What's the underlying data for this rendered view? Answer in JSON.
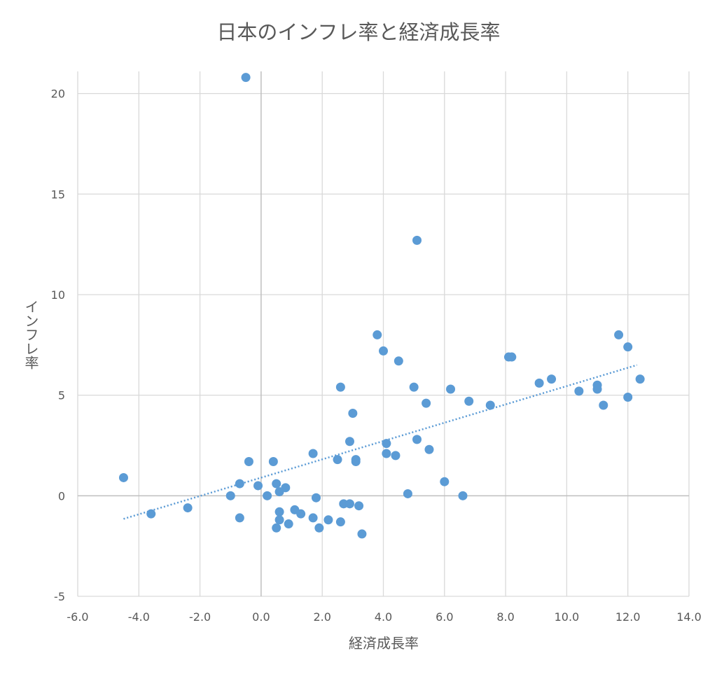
{
  "chart_data": {
    "type": "scatter",
    "title": "日本のインフレ率と経済成長率",
    "xlabel": "経済成長率",
    "ylabel": "インフレ率",
    "xlim": [
      -6.0,
      14.0
    ],
    "ylim": [
      -5,
      22
    ],
    "x_ticks": [
      -6.0,
      -4.0,
      -2.0,
      0.0,
      2.0,
      4.0,
      6.0,
      8.0,
      10.0,
      12.0,
      14.0
    ],
    "x_tick_labels": [
      "-6.0",
      "-4.0",
      "-2.0",
      "0.0",
      "2.0",
      "4.0",
      "6.0",
      "8.0",
      "10.0",
      "12.0",
      "14.0"
    ],
    "y_ticks": [
      -5,
      0,
      5,
      10,
      15,
      20
    ],
    "y_tick_labels": [
      "-5",
      "0",
      "5",
      "10",
      "15",
      "20"
    ],
    "grid": true,
    "marker_color": "#5B9BD5",
    "trendline": {
      "type": "linear",
      "style": "dotted",
      "color": "#5B9BD5",
      "x_start": -4.5,
      "x_end": 12.3,
      "y_start": -1.15,
      "y_end": 6.5
    },
    "points": [
      {
        "x": -0.5,
        "y": 20.8
      },
      {
        "x": 5.1,
        "y": 12.7
      },
      {
        "x": 3.8,
        "y": 8.0
      },
      {
        "x": 4.0,
        "y": 7.2
      },
      {
        "x": 4.5,
        "y": 6.7
      },
      {
        "x": 2.6,
        "y": 5.4
      },
      {
        "x": 5.0,
        "y": 5.4
      },
      {
        "x": 6.2,
        "y": 5.3
      },
      {
        "x": 5.4,
        "y": 4.6
      },
      {
        "x": 6.8,
        "y": 4.7
      },
      {
        "x": 7.5,
        "y": 4.5
      },
      {
        "x": 8.1,
        "y": 6.9
      },
      {
        "x": 8.2,
        "y": 6.9
      },
      {
        "x": 9.1,
        "y": 5.6
      },
      {
        "x": 9.5,
        "y": 5.8
      },
      {
        "x": 10.4,
        "y": 5.2
      },
      {
        "x": 11.0,
        "y": 5.3
      },
      {
        "x": 11.0,
        "y": 5.5
      },
      {
        "x": 11.2,
        "y": 4.5
      },
      {
        "x": 11.7,
        "y": 8.0
      },
      {
        "x": 12.0,
        "y": 7.4
      },
      {
        "x": 12.0,
        "y": 4.9
      },
      {
        "x": 12.4,
        "y": 5.8
      },
      {
        "x": 3.0,
        "y": 4.1
      },
      {
        "x": 2.9,
        "y": 2.7
      },
      {
        "x": 5.1,
        "y": 2.8
      },
      {
        "x": 5.5,
        "y": 2.3
      },
      {
        "x": 4.1,
        "y": 2.6
      },
      {
        "x": 4.1,
        "y": 2.1
      },
      {
        "x": 4.4,
        "y": 2.0
      },
      {
        "x": 1.7,
        "y": 2.1
      },
      {
        "x": 2.5,
        "y": 1.8
      },
      {
        "x": 3.1,
        "y": 1.8
      },
      {
        "x": 3.1,
        "y": 1.7
      },
      {
        "x": 0.4,
        "y": 1.7
      },
      {
        "x": -0.4,
        "y": 1.7
      },
      {
        "x": -4.5,
        "y": 0.9
      },
      {
        "x": -0.7,
        "y": 0.6
      },
      {
        "x": -0.1,
        "y": 0.5
      },
      {
        "x": 0.5,
        "y": 0.6
      },
      {
        "x": 0.8,
        "y": 0.4
      },
      {
        "x": 0.6,
        "y": 0.2
      },
      {
        "x": 6.0,
        "y": 0.7
      },
      {
        "x": 4.8,
        "y": 0.1
      },
      {
        "x": 6.6,
        "y": 0.0
      },
      {
        "x": -1.0,
        "y": 0.0
      },
      {
        "x": 0.2,
        "y": 0.0
      },
      {
        "x": 1.8,
        "y": -0.1
      },
      {
        "x": 2.7,
        "y": -0.4
      },
      {
        "x": 2.9,
        "y": -0.4
      },
      {
        "x": 3.2,
        "y": -0.5
      },
      {
        "x": 1.1,
        "y": -0.7
      },
      {
        "x": 0.6,
        "y": -0.8
      },
      {
        "x": 1.3,
        "y": -0.9
      },
      {
        "x": -3.6,
        "y": -0.9
      },
      {
        "x": -2.4,
        "y": -0.6
      },
      {
        "x": -0.7,
        "y": -1.1
      },
      {
        "x": 0.6,
        "y": -1.2
      },
      {
        "x": 1.7,
        "y": -1.1
      },
      {
        "x": 2.2,
        "y": -1.2
      },
      {
        "x": 2.6,
        "y": -1.3
      },
      {
        "x": 0.9,
        "y": -1.4
      },
      {
        "x": 0.5,
        "y": -1.6
      },
      {
        "x": 1.9,
        "y": -1.6
      },
      {
        "x": 3.3,
        "y": -1.9
      }
    ]
  }
}
